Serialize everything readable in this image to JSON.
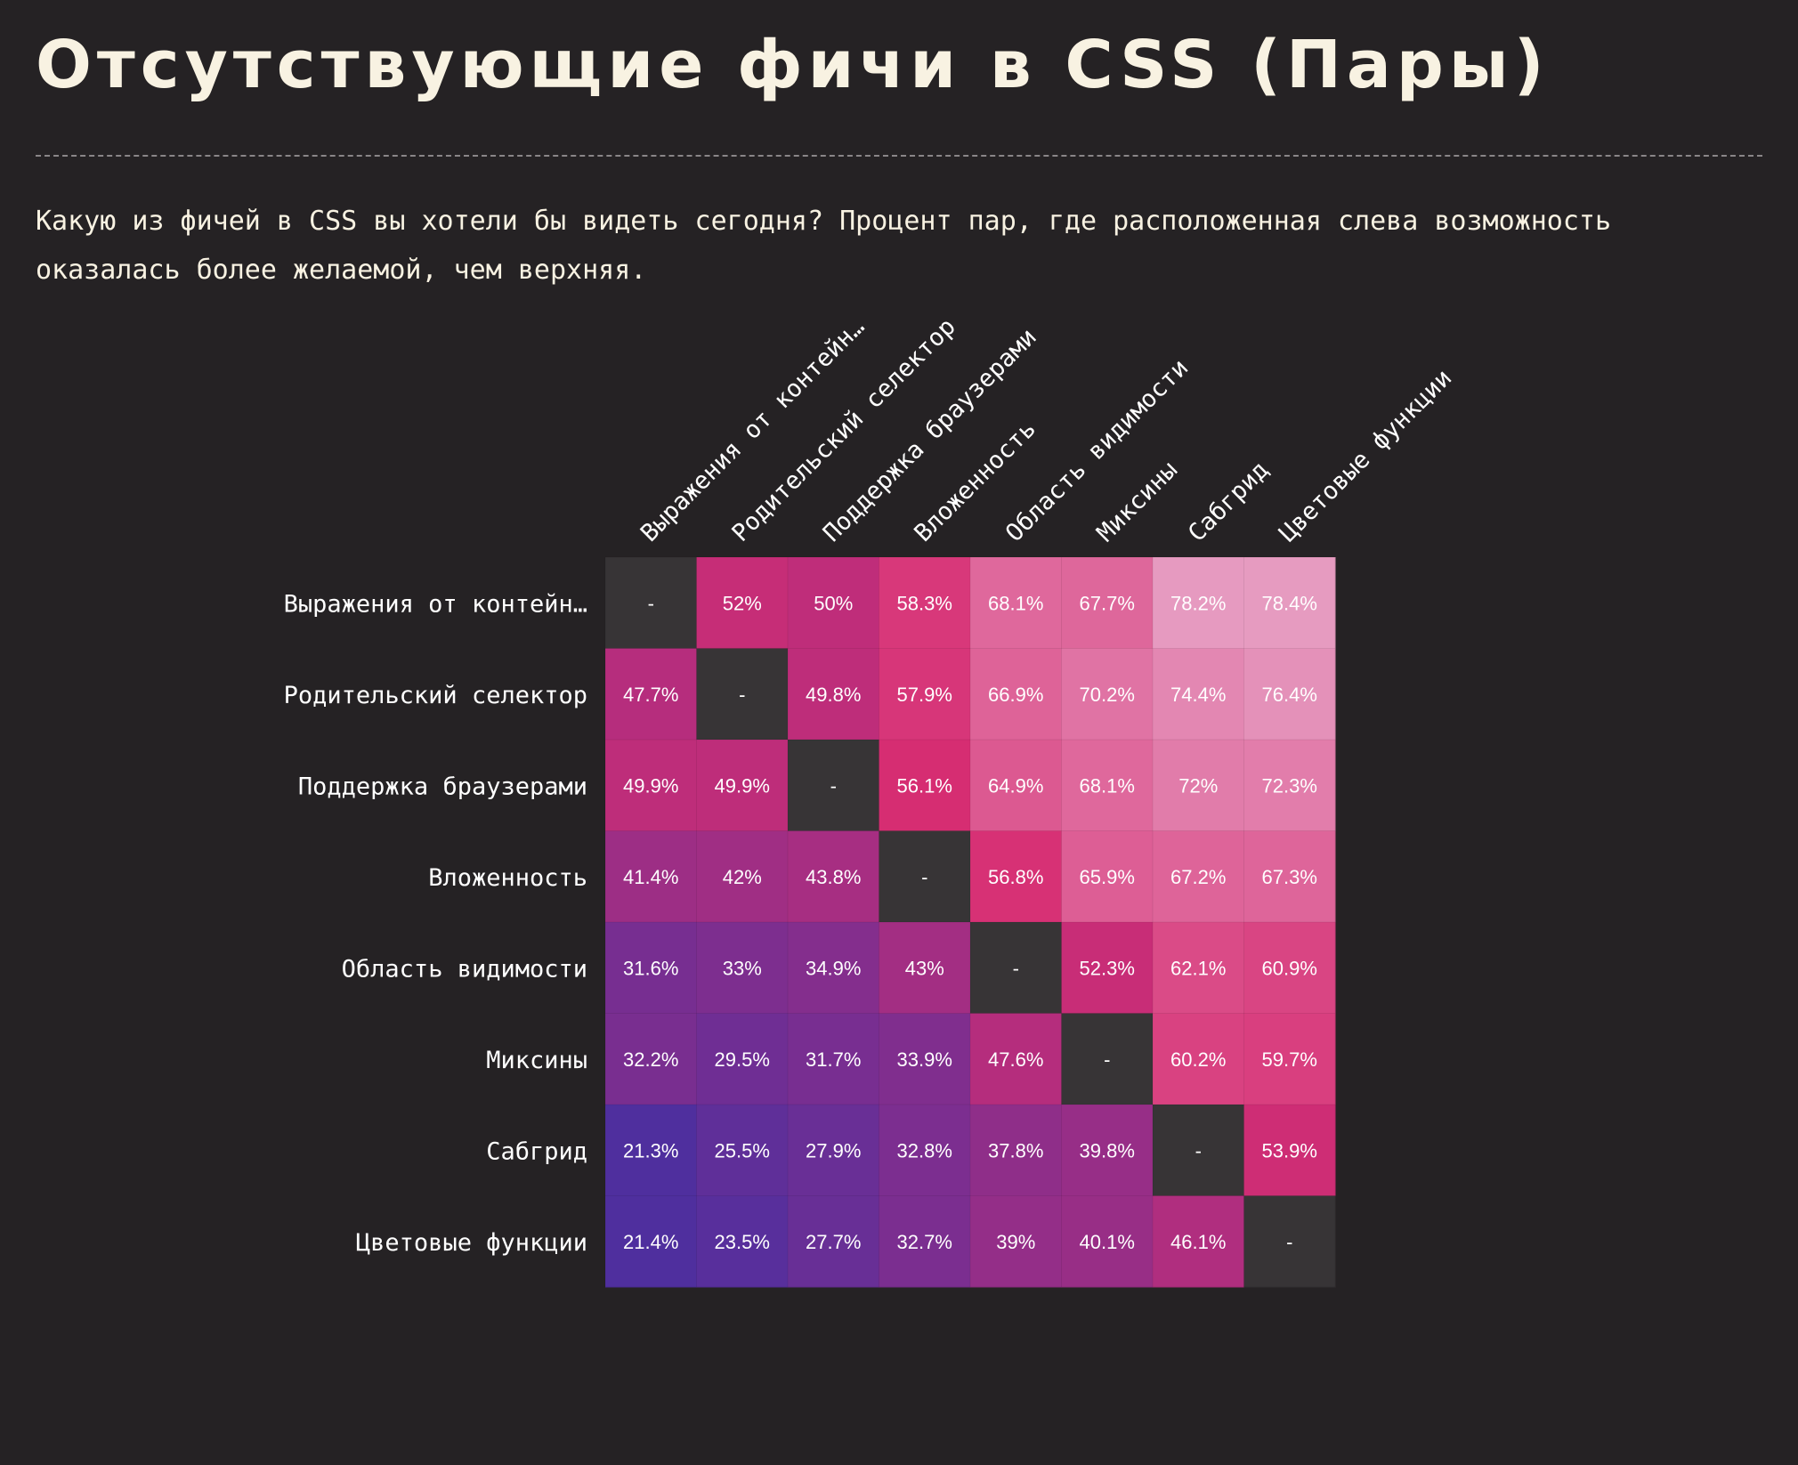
{
  "page": {
    "title": "Отсутствующие фичи в CSS (Пары)",
    "description": "Какую из фичей в CSS вы хотели бы видеть сегодня? Процент пар, где расположенная слева возможность оказалась более желаемой, чем верхняя."
  },
  "colors": {
    "background": "#252224",
    "diagonal_cell": "#373436",
    "low": "#4a2fa0",
    "mid": "#d62d72",
    "high": "#e7a3c6"
  },
  "chart_data": {
    "type": "heatmap",
    "title": "Отсутствующие фичи в CSS (Пары)",
    "row_labels": [
      "Выражения от контейн…",
      "Родительский селектор",
      "Поддержка браузерами",
      "Вложенность",
      "Область видимости",
      "Миксины",
      "Сабгрид",
      "Цветовые функции"
    ],
    "column_labels": [
      "Выражения от контейн…",
      "Родительский селектор",
      "Поддержка браузерами",
      "Вложенность",
      "Область видимости",
      "Миксины",
      "Сабгрид",
      "Цветовые функции"
    ],
    "value_unit": "%",
    "diagonal_label": "-",
    "values": [
      [
        null,
        52,
        50,
        58.3,
        68.1,
        67.7,
        78.2,
        78.4
      ],
      [
        47.7,
        null,
        49.8,
        57.9,
        66.9,
        70.2,
        74.4,
        76.4
      ],
      [
        49.9,
        49.9,
        null,
        56.1,
        64.9,
        68.1,
        72,
        72.3
      ],
      [
        41.4,
        42,
        43.8,
        null,
        56.8,
        65.9,
        67.2,
        67.3
      ],
      [
        31.6,
        33,
        34.9,
        43,
        null,
        52.3,
        62.1,
        60.9
      ],
      [
        32.2,
        29.5,
        31.7,
        33.9,
        47.6,
        null,
        60.2,
        59.7
      ],
      [
        21.3,
        25.5,
        27.9,
        32.8,
        37.8,
        39.8,
        null,
        53.9
      ],
      [
        21.4,
        23.5,
        27.7,
        32.7,
        39,
        40.1,
        46.1,
        null
      ]
    ]
  }
}
